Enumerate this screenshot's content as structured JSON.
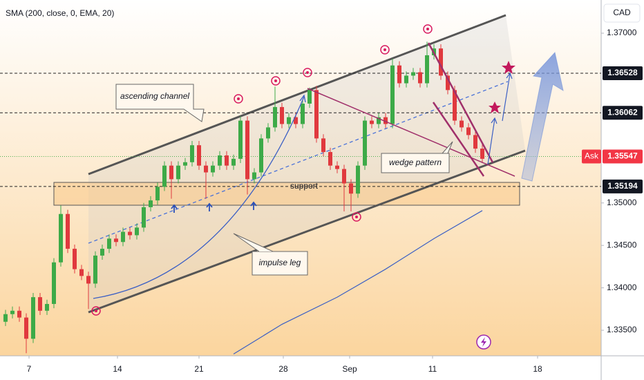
{
  "chart_data": {
    "type": "candlestick",
    "title": "SMA (200, close, 0, EMA, 20)",
    "currency": "CAD",
    "up_color": "#3daa48",
    "down_color": "#e0393e",
    "open": [
      1.336,
      1.3369,
      1.3373,
      1.3365,
      1.334,
      1.3389,
      1.3373,
      1.3381,
      1.343,
      1.3487,
      1.3446,
      1.3422,
      1.3414,
      1.3405,
      1.3438,
      1.3446,
      1.3458,
      1.3454,
      1.3466,
      1.3462,
      1.3471,
      1.3495,
      1.3503,
      1.3519,
      1.3544,
      1.3528,
      1.3544,
      1.3548,
      1.3568,
      1.3544,
      1.3536,
      1.3544,
      1.3556,
      1.3544,
      1.3552,
      1.3597,
      1.3528,
      1.3536,
      1.3576,
      1.3589,
      1.3613,
      1.3593,
      1.3601,
      1.3593,
      1.3617,
      1.3633,
      1.3576,
      1.356,
      1.3544,
      1.354,
      1.3523,
      1.3511,
      1.3544,
      1.3597,
      1.3593,
      1.3601,
      1.3593,
      1.3662,
      1.3641,
      1.365,
      1.3654,
      1.3641,
      1.3674,
      1.3682,
      1.365,
      1.3633,
      1.3597,
      1.3589,
      1.358,
      1.3564
    ],
    "high": [
      1.3374,
      1.3378,
      1.3378,
      1.337,
      1.3394,
      1.3394,
      1.3386,
      1.3435,
      1.3497,
      1.3492,
      1.3451,
      1.3427,
      1.3419,
      1.3443,
      1.3451,
      1.3463,
      1.3463,
      1.3471,
      1.3471,
      1.3476,
      1.35,
      1.3508,
      1.3524,
      1.3549,
      1.3549,
      1.3549,
      1.3553,
      1.3573,
      1.3573,
      1.3549,
      1.3549,
      1.3561,
      1.3561,
      1.3557,
      1.3602,
      1.3602,
      1.3541,
      1.3581,
      1.3594,
      1.3637,
      1.3618,
      1.3606,
      1.3606,
      1.3622,
      1.3636,
      1.3638,
      1.3581,
      1.3565,
      1.3549,
      1.3545,
      1.3528,
      1.3549,
      1.3602,
      1.3602,
      1.3606,
      1.3606,
      1.367,
      1.3667,
      1.3655,
      1.3659,
      1.3659,
      1.369,
      1.3687,
      1.3687,
      1.3655,
      1.3638,
      1.3602,
      1.3594,
      1.3585,
      1.3569
    ],
    "low": [
      1.3355,
      1.3364,
      1.336,
      1.3323,
      1.3335,
      1.3368,
      1.3368,
      1.3376,
      1.3425,
      1.3441,
      1.3417,
      1.3409,
      1.3375,
      1.34,
      1.3433,
      1.3441,
      1.3449,
      1.3449,
      1.3457,
      1.3457,
      1.3466,
      1.349,
      1.3498,
      1.3514,
      1.3505,
      1.3523,
      1.3539,
      1.3543,
      1.3539,
      1.3505,
      1.3531,
      1.3539,
      1.3539,
      1.3539,
      1.3547,
      1.351,
      1.3523,
      1.3531,
      1.3571,
      1.3584,
      1.3588,
      1.3588,
      1.3588,
      1.3588,
      1.3612,
      1.3571,
      1.3555,
      1.3539,
      1.3535,
      1.349,
      1.349,
      1.3506,
      1.3539,
      1.3588,
      1.3588,
      1.3588,
      1.3588,
      1.3636,
      1.3636,
      1.3645,
      1.3636,
      1.3636,
      1.3669,
      1.3645,
      1.3628,
      1.3592,
      1.3584,
      1.3575,
      1.3559,
      1.3547
    ],
    "close": [
      1.3369,
      1.3373,
      1.3365,
      1.334,
      1.3389,
      1.3373,
      1.3381,
      1.343,
      1.3487,
      1.3446,
      1.3422,
      1.3414,
      1.3405,
      1.3438,
      1.3446,
      1.3458,
      1.3454,
      1.3466,
      1.3462,
      1.3471,
      1.3495,
      1.3503,
      1.3519,
      1.3544,
      1.3528,
      1.3544,
      1.3548,
      1.3568,
      1.3544,
      1.3536,
      1.3544,
      1.3556,
      1.3544,
      1.3552,
      1.3597,
      1.3528,
      1.3536,
      1.3576,
      1.3589,
      1.3613,
      1.3593,
      1.3601,
      1.3593,
      1.3617,
      1.3633,
      1.3576,
      1.356,
      1.3544,
      1.354,
      1.3523,
      1.3511,
      1.3544,
      1.3597,
      1.3593,
      1.3601,
      1.3593,
      1.3662,
      1.3641,
      1.365,
      1.3654,
      1.3641,
      1.3674,
      1.3682,
      1.365,
      1.3633,
      1.3597,
      1.3589,
      1.358,
      1.3564,
      1.3552
    ],
    "ma": {
      "color": "#3b5fc4",
      "x": [
        33,
        40,
        48,
        55,
        62,
        69
      ],
      "values": [
        1.3322,
        1.3357,
        1.3389,
        1.3422,
        1.3458,
        1.3491
      ]
    },
    "xlim": [
      -0.8,
      86.2
    ],
    "ylim": [
      1.33199,
      1.37391
    ],
    "xticks": [
      {
        "value": 3.4,
        "label": "7"
      },
      {
        "value": 16.2,
        "label": "14"
      },
      {
        "value": 28,
        "label": "21"
      },
      {
        "value": 40.2,
        "label": "28"
      },
      {
        "value": 49.8,
        "label": "Sep"
      },
      {
        "value": 61.8,
        "label": "11"
      },
      {
        "value": 77,
        "label": "18"
      }
    ],
    "yticks": [
      {
        "value": 1.37,
        "label": "1.37000"
      },
      {
        "value": 1.35,
        "label": "1.35000"
      },
      {
        "value": 1.345,
        "label": "1.34500"
      },
      {
        "value": 1.34,
        "label": "1.34000"
      },
      {
        "value": 1.335,
        "label": "1.33500"
      }
    ],
    "price_lines": [
      1.36528,
      1.36062,
      1.35194
    ],
    "ask": {
      "label": "Ask",
      "value": 1.35547,
      "color": "#f23645"
    },
    "annotations": [
      "ascending channel",
      "wedge pattern",
      "impulse leg",
      "support"
    ]
  }
}
